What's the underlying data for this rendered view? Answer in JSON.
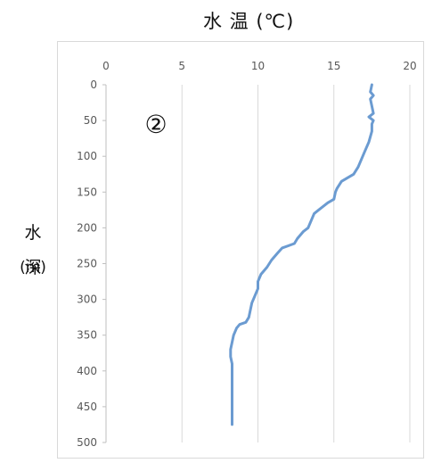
{
  "chart_data": {
    "type": "line",
    "title": "水 温 (℃)",
    "panel_label": "②",
    "ylabel_chars": [
      "水",
      "深",
      "(m)"
    ],
    "x_ticks": [
      0,
      5,
      10,
      15,
      20
    ],
    "y_ticks": [
      0,
      50,
      100,
      150,
      200,
      250,
      300,
      350,
      400,
      450,
      500
    ],
    "xlim": [
      0,
      20
    ],
    "ylim": [
      0,
      500
    ],
    "y_inverted": true,
    "grid": "vertical",
    "line_color": "#6b9bd1",
    "series": [
      {
        "x": [
          17.5,
          17.4,
          17.6,
          17.4,
          17.6,
          17.3,
          17.6,
          17.5,
          17.5,
          17.3,
          17.0,
          16.8,
          16.6,
          16.3,
          15.9,
          15.5,
          15.2,
          15.1,
          15.0,
          14.6,
          14.3,
          14.0,
          13.7,
          13.5,
          13.3,
          13.0,
          12.8,
          12.6,
          12.4,
          12.0,
          11.6,
          11.3,
          10.9,
          10.6,
          10.4,
          10.2,
          10.0,
          10.0,
          9.8,
          9.6,
          9.5,
          9.4,
          9.2,
          8.8,
          8.6,
          8.4,
          8.3,
          8.2,
          8.2,
          8.3,
          8.3,
          8.3,
          8.3,
          8.3
        ],
        "y": [
          0,
          10,
          15,
          20,
          40,
          45,
          50,
          55,
          65,
          80,
          95,
          105,
          115,
          125,
          130,
          135,
          145,
          150,
          160,
          165,
          170,
          175,
          180,
          190,
          200,
          205,
          210,
          215,
          222,
          225,
          228,
          235,
          245,
          255,
          260,
          265,
          275,
          285,
          295,
          305,
          315,
          325,
          332,
          335,
          340,
          350,
          360,
          370,
          380,
          390,
          400,
          430,
          460,
          475
        ]
      }
    ]
  }
}
